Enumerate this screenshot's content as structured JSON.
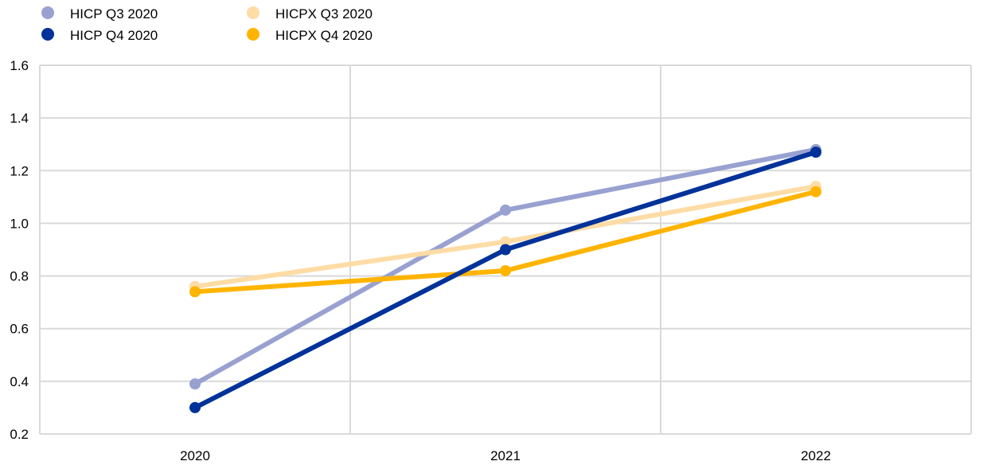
{
  "chart_data": {
    "type": "line",
    "title": "",
    "xlabel": "",
    "ylabel": "",
    "categories": [
      "2020",
      "2021",
      "2022"
    ],
    "ylim": [
      0.2,
      1.6
    ],
    "yticks": [
      "0.2",
      "0.4",
      "0.6",
      "0.8",
      "1.0",
      "1.2",
      "1.4",
      "1.6"
    ],
    "grid": true,
    "legend_position": "top-left",
    "series": [
      {
        "name": "HICP Q3 2020",
        "color": "#98a1d0",
        "values": [
          0.39,
          1.05,
          1.28
        ]
      },
      {
        "name": "HICPX Q3 2020",
        "color": "#fddca5",
        "values": [
          0.76,
          0.93,
          1.14
        ]
      },
      {
        "name": "HICPX Q4 2020",
        "color": "#ffb400",
        "values": [
          0.74,
          0.82,
          1.12
        ]
      },
      {
        "name": "HICP Q4 2020",
        "color": "#003299",
        "values": [
          0.3,
          0.9,
          1.27
        ]
      }
    ],
    "legend_order": [
      0,
      3,
      1,
      2
    ]
  }
}
